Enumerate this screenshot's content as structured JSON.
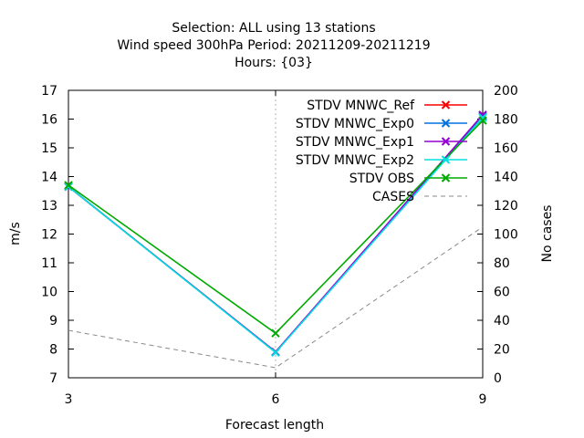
{
  "chart_data": {
    "type": "line",
    "title_lines": [
      "Selection: ALL using    13 stations",
      "Wind speed 300hPa   Period: 20211209-20211219",
      "Hours: {03}"
    ],
    "xlabel": "Forecast length",
    "ylabel": "m/s",
    "y2label": "No cases",
    "x": [
      3,
      6,
      9
    ],
    "xlim": [
      3,
      9
    ],
    "xticks": [
      "3",
      "6",
      "9"
    ],
    "ylim": [
      7,
      17
    ],
    "yticks": [
      "7",
      "8",
      "9",
      "10",
      "11",
      "12",
      "13",
      "14",
      "15",
      "16",
      "17"
    ],
    "y2lim": [
      0,
      200
    ],
    "y2ticks": [
      "0",
      "20",
      "40",
      "60",
      "80",
      "100",
      "120",
      "140",
      "160",
      "180",
      "200"
    ],
    "grid": "vertical-at-x-6",
    "legend_position": "top-right",
    "series": [
      {
        "name": "STDV MNWC_Ref",
        "color": "#ff0000",
        "axis": "left",
        "marker": "x",
        "values": [
          13.65,
          7.9,
          16.1
        ]
      },
      {
        "name": "STDV MNWC_Exp0",
        "color": "#0072e0",
        "axis": "left",
        "marker": "x",
        "values": [
          13.65,
          7.9,
          16.1
        ]
      },
      {
        "name": "STDV MNWC_Exp1",
        "color": "#9400d3",
        "axis": "left",
        "marker": "x",
        "values": [
          13.65,
          7.9,
          16.15
        ]
      },
      {
        "name": "STDV MNWC_Exp2",
        "color": "#00e0e0",
        "axis": "left",
        "marker": "x",
        "values": [
          13.65,
          7.88,
          16.05
        ]
      },
      {
        "name": "STDV OBS",
        "color": "#00aa00",
        "axis": "left",
        "marker": "x",
        "values": [
          13.7,
          8.55,
          15.95
        ]
      },
      {
        "name": "CASES",
        "color": "#888888",
        "axis": "right",
        "marker": "none",
        "dashed": true,
        "values": [
          33,
          7,
          105
        ]
      }
    ]
  }
}
